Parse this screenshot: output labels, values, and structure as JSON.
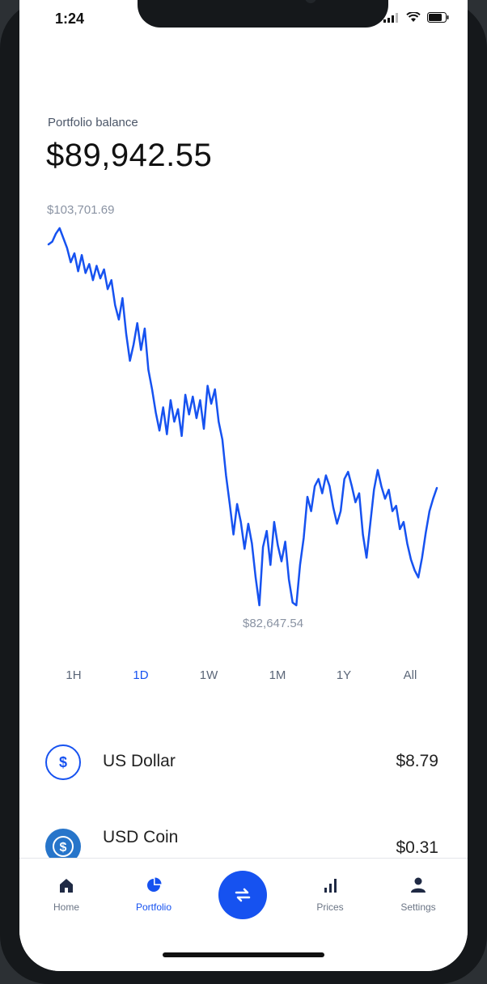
{
  "status_bar": {
    "time": "1:24"
  },
  "portfolio": {
    "balance_label": "Portfolio balance",
    "balance": "$89,942.55",
    "high_label": "$103,701.69",
    "low_label": "$82,647.54"
  },
  "chart_data": {
    "type": "line",
    "title": "",
    "xlabel": "",
    "ylabel": "",
    "grid": false,
    "ylim": [
      82647.54,
      103701.69
    ],
    "series": [
      {
        "color": "#1652f0",
        "values": [
          102800,
          102950,
          103400,
          103701.69,
          103150,
          102600,
          101800,
          102300,
          101300,
          102200,
          101200,
          101700,
          100800,
          101600,
          100900,
          101400,
          100300,
          100800,
          99400,
          98600,
          99800,
          97800,
          96300,
          97200,
          98400,
          96900,
          98100,
          95800,
          94700,
          93400,
          92400,
          93700,
          92200,
          94100,
          92900,
          93600,
          92100,
          94400,
          93300,
          94300,
          93100,
          94100,
          92500,
          94900,
          93900,
          94700,
          92900,
          91900,
          89900,
          88300,
          86600,
          88300,
          87300,
          85800,
          87200,
          86100,
          84200,
          82647.54,
          85900,
          86800,
          84900,
          87300,
          86000,
          85100,
          86200,
          84100,
          82800,
          82647.54,
          84900,
          86400,
          88700,
          87900,
          89300,
          89700,
          88900,
          89900,
          89300,
          88100,
          87200,
          87900,
          89700,
          90100,
          89300,
          88400,
          88900,
          86600,
          85300,
          87200,
          89100,
          90200,
          89300,
          88600,
          89100,
          87900,
          88200,
          86900,
          87300,
          86100,
          85200,
          84600,
          84200,
          85300,
          86700,
          87900,
          88600,
          89200
        ]
      }
    ]
  },
  "ranges": [
    {
      "label": "1H",
      "active": false
    },
    {
      "label": "1D",
      "active": true
    },
    {
      "label": "1W",
      "active": false
    },
    {
      "label": "1M",
      "active": false
    },
    {
      "label": "1Y",
      "active": false
    },
    {
      "label": "All",
      "active": false
    }
  ],
  "assets": [
    {
      "name": "US Dollar",
      "value": "$8.79",
      "icon": "dollar-icon"
    },
    {
      "name": "USD Coin",
      "value": "$0.31",
      "icon": "usd-coin-icon"
    }
  ],
  "tabs": [
    {
      "label": "Home",
      "icon": "home-icon",
      "active": false
    },
    {
      "label": "Portfolio",
      "icon": "pie-chart-icon",
      "active": true
    },
    {
      "label": "Prices",
      "icon": "bar-chart-icon",
      "active": false
    },
    {
      "label": "Settings",
      "icon": "user-icon",
      "active": false
    }
  ],
  "trade_button": {
    "icon": "swap-arrows-icon"
  },
  "colors": {
    "accent": "#1652f0",
    "text": "#111111",
    "muted": "#8a93a3"
  }
}
